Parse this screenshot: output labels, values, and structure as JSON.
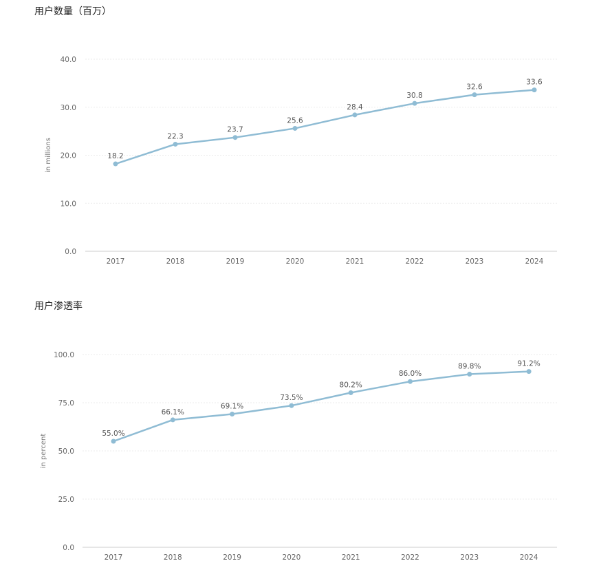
{
  "charts": {
    "colors": {
      "line": "#8fbcd4",
      "grid": "#ebebeb",
      "axis": "#cccccc"
    }
  },
  "chart_data": [
    {
      "type": "line",
      "title": "用户数量（百万）",
      "xlabel": "",
      "ylabel": "in millions",
      "categories": [
        "2017",
        "2018",
        "2019",
        "2020",
        "2021",
        "2022",
        "2023",
        "2024"
      ],
      "series": [
        {
          "values": [
            18.2,
            22.3,
            23.7,
            25.6,
            28.4,
            30.8,
            32.6,
            33.6
          ]
        }
      ],
      "data_labels": [
        "18.2",
        "22.3",
        "23.7",
        "25.6",
        "28.4",
        "30.8",
        "32.6",
        "33.6"
      ],
      "yticks": [
        "0.0",
        "10.0",
        "20.0",
        "30.0",
        "40.0"
      ],
      "ylim": [
        0,
        40
      ],
      "grid": true
    },
    {
      "type": "line",
      "title": "用户渗透率",
      "xlabel": "",
      "ylabel": "in percent",
      "categories": [
        "2017",
        "2018",
        "2019",
        "2020",
        "2021",
        "2022",
        "2023",
        "2024"
      ],
      "series": [
        {
          "values": [
            55.0,
            66.1,
            69.1,
            73.5,
            80.2,
            86.0,
            89.8,
            91.2
          ]
        }
      ],
      "data_labels": [
        "55.0%",
        "66.1%",
        "69.1%",
        "73.5%",
        "80.2%",
        "86.0%",
        "89.8%",
        "91.2%"
      ],
      "yticks": [
        "0.0",
        "25.0",
        "50.0",
        "75.0",
        "100.0"
      ],
      "ylim": [
        0,
        100
      ],
      "grid": true
    }
  ]
}
